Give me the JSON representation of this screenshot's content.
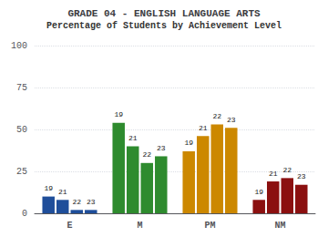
{
  "chart_data": {
    "type": "bar",
    "title": "GRADE 04 - ENGLISH LANGUAGE ARTS",
    "subtitle": "Percentage of Students by Achievement Level",
    "categories": [
      "E",
      "M",
      "PM",
      "NM"
    ],
    "series": [
      {
        "name": "19",
        "values": [
          10,
          54,
          37,
          8
        ],
        "colors": [
          "#1f4e9a",
          "#2e8b2e",
          "#cc8800",
          "#8b1010"
        ]
      },
      {
        "name": "21",
        "values": [
          8,
          40,
          46,
          19
        ],
        "colors": [
          "#1f4e9a",
          "#2e8b2e",
          "#cc8800",
          "#8b1010"
        ]
      },
      {
        "name": "22",
        "values": [
          2,
          30,
          53,
          21
        ],
        "colors": [
          "#1f4e9a",
          "#2e8b2e",
          "#cc8800",
          "#8b1010"
        ]
      },
      {
        "name": "23",
        "values": [
          2,
          34,
          51,
          17
        ],
        "colors": [
          "#1f4e9a",
          "#2e8b2e",
          "#cc8800",
          "#8b1010"
        ]
      }
    ],
    "ylim": [
      0,
      100
    ],
    "yticks": [
      0,
      25,
      50,
      75,
      100
    ],
    "grid": true
  }
}
